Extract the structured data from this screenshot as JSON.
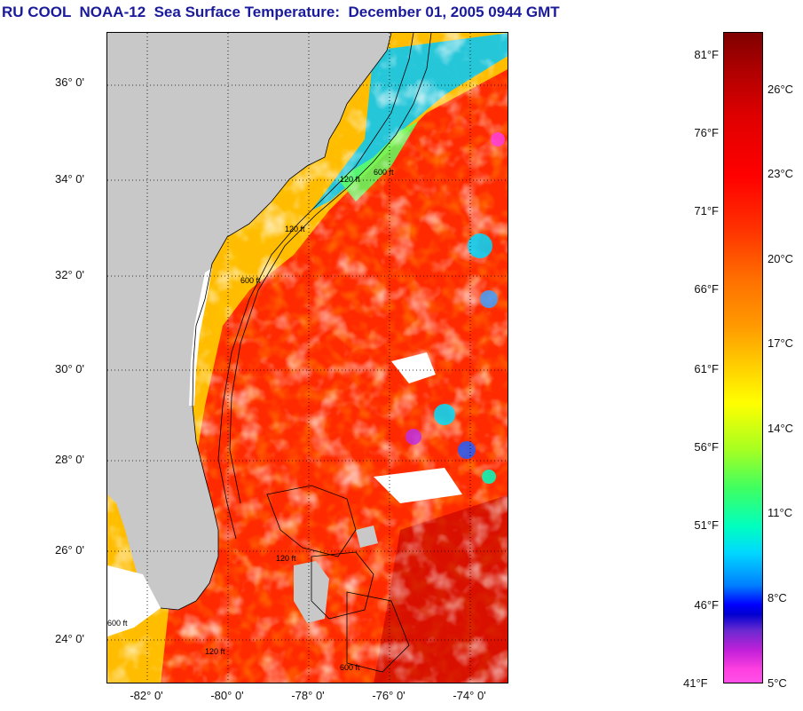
{
  "title": "RU COOL  NOAA-12  Sea Surface Temperature:  December 01, 2005 0944 GMT",
  "map": {
    "latitude_labels": [
      "36° 0'",
      "34° 0'",
      "32° 0'",
      "30° 0'",
      "28° 0'",
      "26° 0'",
      "24° 0'"
    ],
    "longitude_labels": [
      "-82° 0'",
      "-80° 0'",
      "-78° 0'",
      "-76° 0'",
      "-74° 0'"
    ],
    "contour_labels": [
      "120 ft",
      "600 ft",
      "120 ft",
      "600 ft",
      "120 ft",
      "600 ft",
      "120 ft",
      "600 ft"
    ],
    "colors": {
      "land": "#c8c8c8",
      "cloud": "#ffffff",
      "warm_water": "#ff2a00",
      "coastline": "#000000"
    }
  },
  "colorbar": {
    "fahrenheit_labels": [
      "81°F",
      "76°F",
      "71°F",
      "66°F",
      "61°F",
      "56°F",
      "51°F",
      "46°F",
      "41°F"
    ],
    "celsius_labels": [
      "26°C",
      "23°C",
      "20°C",
      "17°C",
      "14°C",
      "11°C",
      "8°C",
      "5°C"
    ]
  }
}
